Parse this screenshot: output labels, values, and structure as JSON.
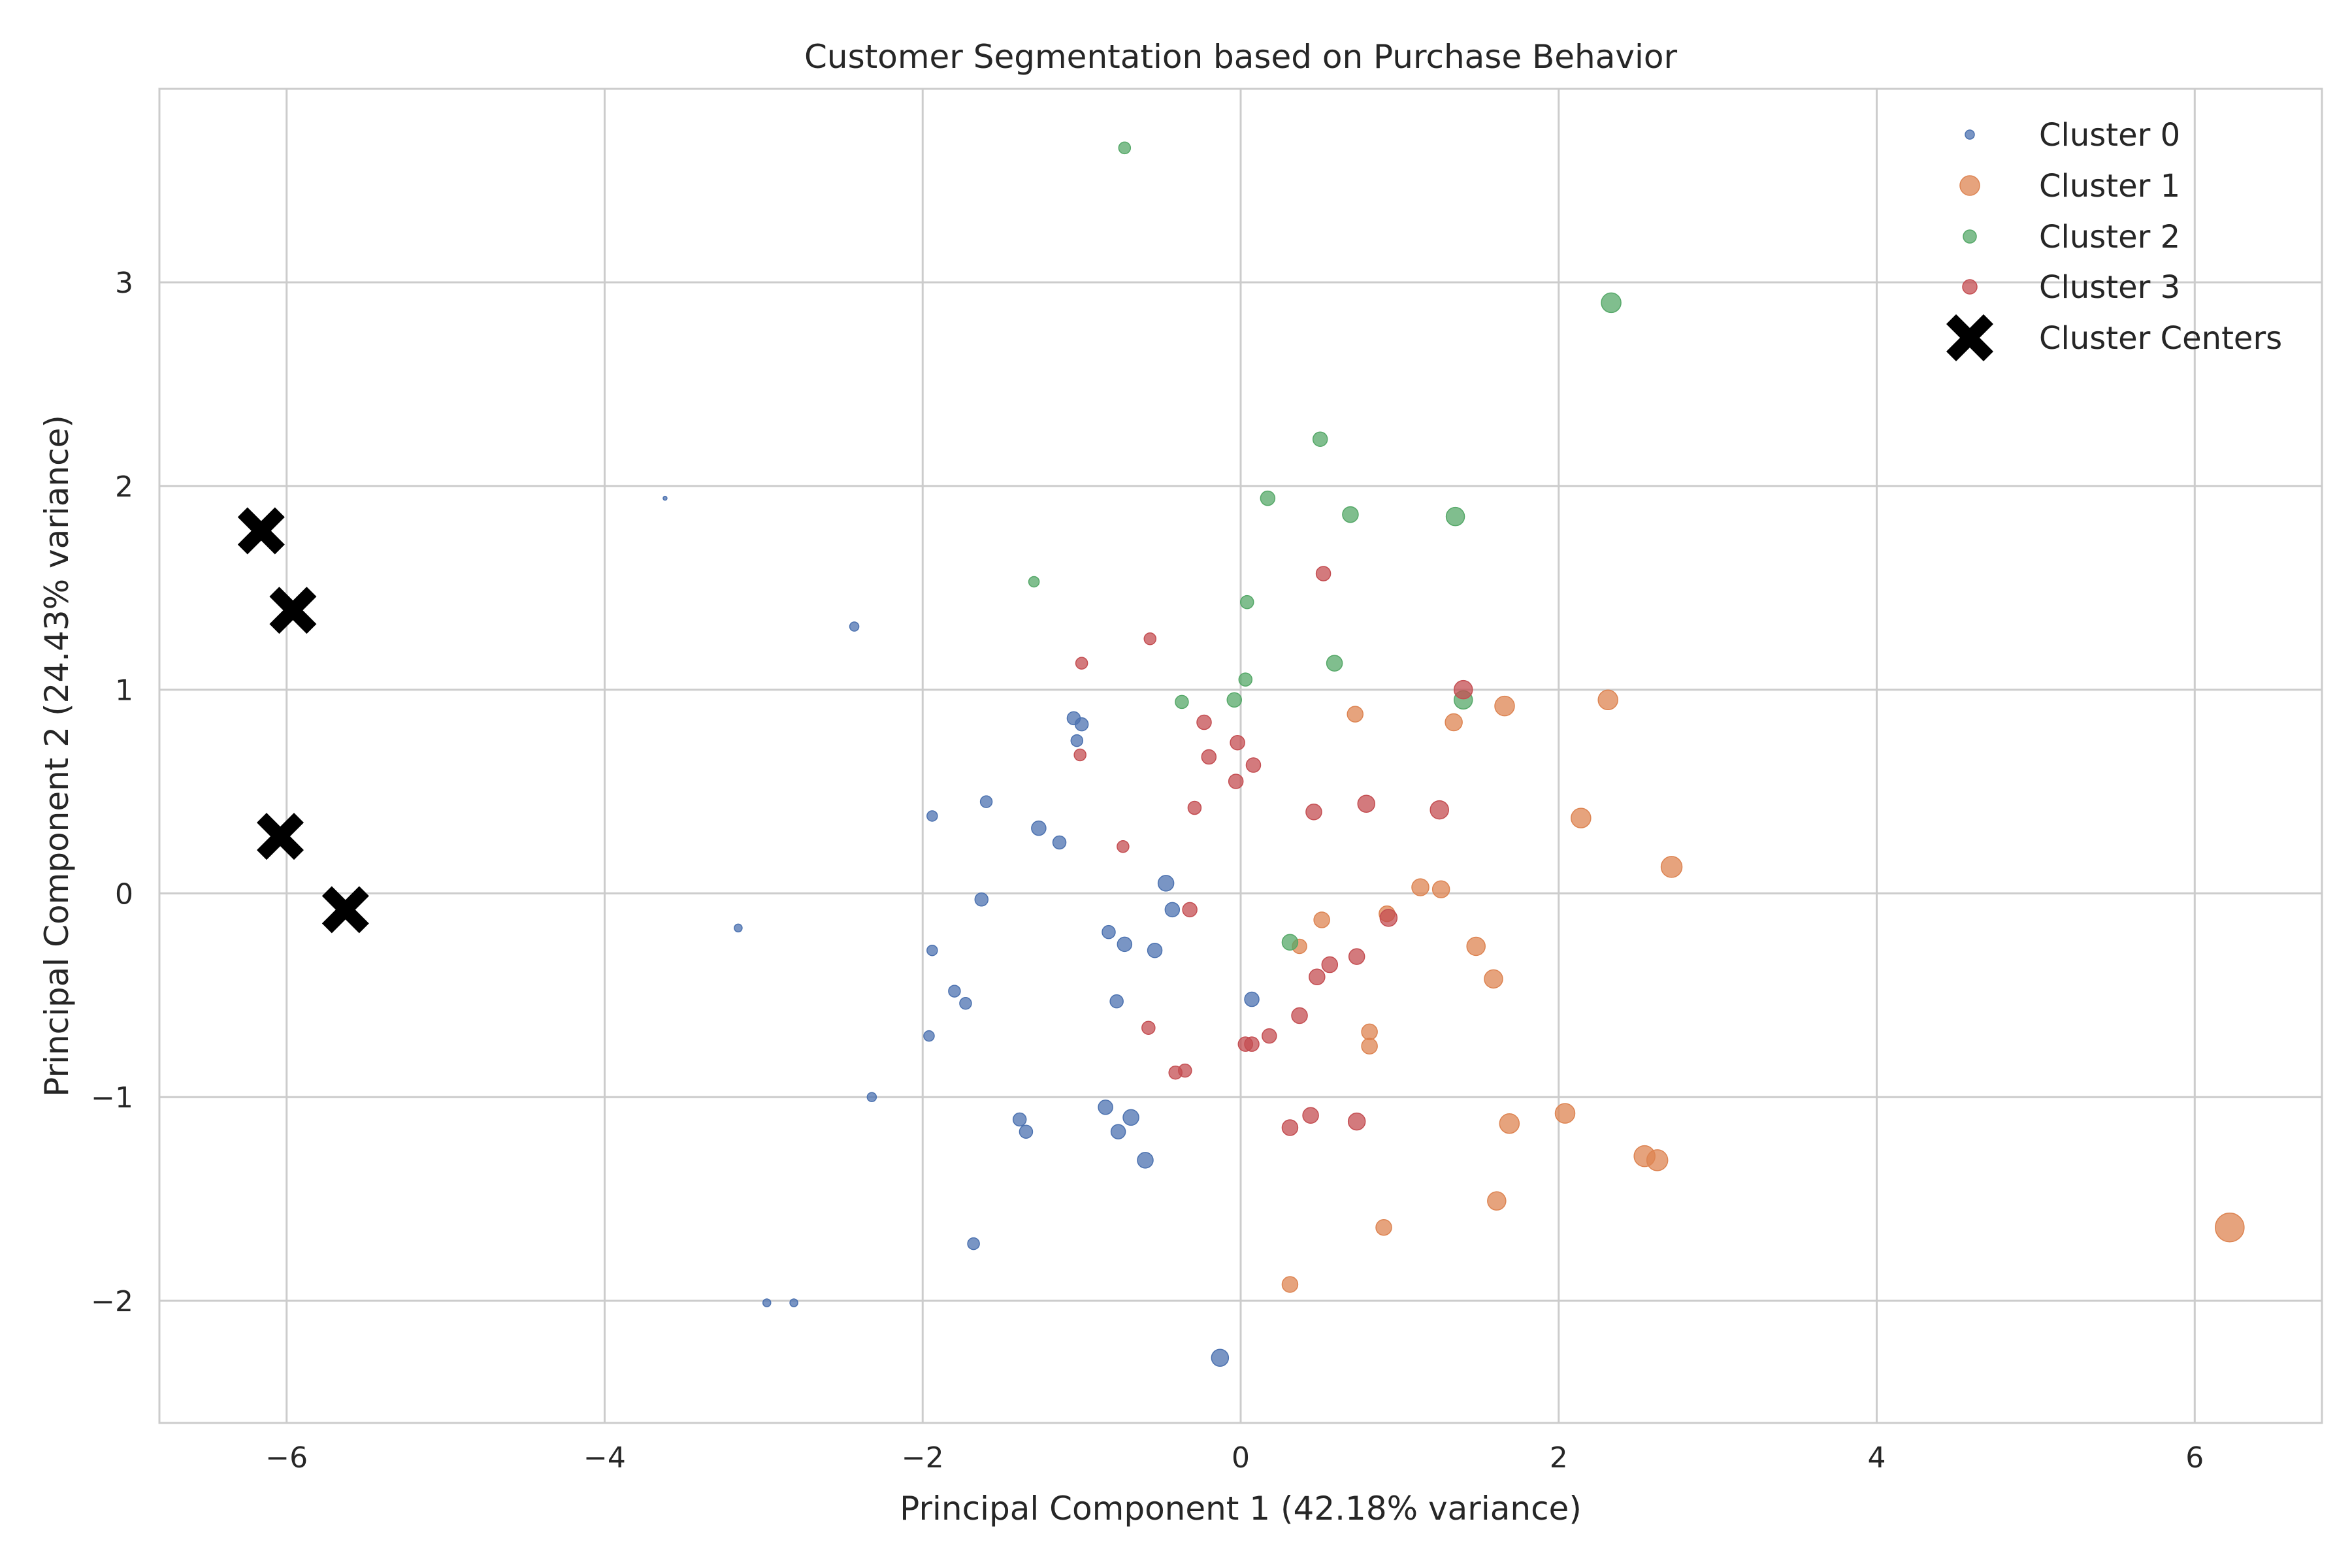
{
  "chart_data": {
    "type": "scatter",
    "title": "Customer Segmentation based on Purchase Behavior",
    "xlabel": "Principal Component 1 (42.18% variance)",
    "ylabel": "Principal Component 2 (24.43% variance)",
    "xlim": [
      -6.8,
      6.8
    ],
    "ylim": [
      -2.6,
      3.95
    ],
    "xticks": [
      -6,
      -4,
      -2,
      0,
      2,
      4,
      6
    ],
    "yticks": [
      -2,
      -1,
      0,
      1,
      2,
      3
    ],
    "xtick_labels": [
      "−6",
      "−4",
      "−2",
      "0",
      "2",
      "4",
      "6"
    ],
    "ytick_labels": [
      "−2",
      "−1",
      "0",
      "1",
      "2",
      "3"
    ],
    "grid": true,
    "legend_position": "top-right",
    "series": [
      {
        "name": "Cluster 0",
        "color": "#4c72b0",
        "points": [
          [
            -3.62,
            1.94
          ],
          [
            -2.43,
            1.31
          ],
          [
            -1.05,
            0.86
          ],
          [
            -1.0,
            0.83
          ],
          [
            -1.03,
            0.75
          ],
          [
            -1.94,
            0.38
          ],
          [
            -1.6,
            0.45
          ],
          [
            -1.27,
            0.32
          ],
          [
            -1.14,
            0.25
          ],
          [
            -0.47,
            0.05
          ],
          [
            -1.63,
            -0.03
          ],
          [
            -0.43,
            -0.08
          ],
          [
            -3.16,
            -0.17
          ],
          [
            -0.83,
            -0.19
          ],
          [
            -0.73,
            -0.25
          ],
          [
            -0.54,
            -0.28
          ],
          [
            -1.94,
            -0.28
          ],
          [
            -1.8,
            -0.48
          ],
          [
            -1.73,
            -0.54
          ],
          [
            -0.78,
            -0.53
          ],
          [
            0.07,
            -0.52
          ],
          [
            -1.96,
            -0.7
          ],
          [
            -2.32,
            -1.0
          ],
          [
            -0.85,
            -1.05
          ],
          [
            -0.69,
            -1.1
          ],
          [
            -1.39,
            -1.11
          ],
          [
            -1.35,
            -1.17
          ],
          [
            -0.77,
            -1.17
          ],
          [
            -0.6,
            -1.31
          ],
          [
            -1.68,
            -1.72
          ],
          [
            -2.98,
            -2.01
          ],
          [
            -2.81,
            -2.01
          ],
          [
            -0.13,
            -2.28
          ]
        ],
        "sizes": [
          3,
          7,
          10,
          10,
          9,
          8,
          9,
          11,
          10,
          12,
          10,
          11,
          6,
          10,
          11,
          11,
          8,
          9,
          9,
          10,
          11,
          8,
          7,
          11,
          12,
          10,
          10,
          11,
          12,
          9,
          6,
          6,
          13
        ]
      },
      {
        "name": "Cluster 1",
        "color": "#dd8452",
        "points": [
          [
            2.31,
            0.95
          ],
          [
            1.66,
            0.92
          ],
          [
            0.72,
            0.88
          ],
          [
            1.34,
            0.84
          ],
          [
            2.14,
            0.37
          ],
          [
            2.71,
            0.13
          ],
          [
            1.13,
            0.03
          ],
          [
            1.26,
            0.02
          ],
          [
            0.92,
            -0.1
          ],
          [
            0.51,
            -0.13
          ],
          [
            0.37,
            -0.26
          ],
          [
            1.48,
            -0.26
          ],
          [
            1.59,
            -0.42
          ],
          [
            0.81,
            -0.68
          ],
          [
            0.81,
            -0.75
          ],
          [
            1.69,
            -1.13
          ],
          [
            2.04,
            -1.08
          ],
          [
            2.54,
            -1.29
          ],
          [
            2.62,
            -1.31
          ],
          [
            1.61,
            -1.51
          ],
          [
            0.9,
            -1.64
          ],
          [
            0.31,
            -1.92
          ],
          [
            6.22,
            -1.64
          ]
        ],
        "sizes": [
          15,
          15,
          12,
          13,
          15,
          16,
          13,
          13,
          12,
          12,
          11,
          14,
          14,
          12,
          12,
          15,
          15,
          16,
          16,
          14,
          12,
          12,
          22
        ]
      },
      {
        "name": "Cluster 2",
        "color": "#55a868",
        "points": [
          [
            -0.73,
            3.66
          ],
          [
            2.33,
            2.9
          ],
          [
            0.5,
            2.23
          ],
          [
            0.17,
            1.94
          ],
          [
            0.69,
            1.86
          ],
          [
            1.35,
            1.85
          ],
          [
            -1.3,
            1.53
          ],
          [
            0.04,
            1.43
          ],
          [
            0.59,
            1.13
          ],
          [
            0.03,
            1.05
          ],
          [
            -0.37,
            0.94
          ],
          [
            -0.04,
            0.95
          ],
          [
            1.4,
            0.95
          ],
          [
            0.31,
            -0.24
          ]
        ],
        "sizes": [
          9,
          15,
          11,
          11,
          12,
          14,
          8,
          10,
          12,
          10,
          10,
          11,
          14,
          12
        ]
      },
      {
        "name": "Cluster 3",
        "color": "#c44e52",
        "points": [
          [
            0.52,
            1.57
          ],
          [
            -0.57,
            1.25
          ],
          [
            -1.0,
            1.13
          ],
          [
            1.4,
            1.0
          ],
          [
            -0.23,
            0.84
          ],
          [
            -0.02,
            0.74
          ],
          [
            -0.2,
            0.67
          ],
          [
            -1.01,
            0.68
          ],
          [
            0.08,
            0.63
          ],
          [
            -0.03,
            0.55
          ],
          [
            -0.29,
            0.42
          ],
          [
            0.46,
            0.4
          ],
          [
            0.79,
            0.44
          ],
          [
            1.25,
            0.41
          ],
          [
            -0.74,
            0.23
          ],
          [
            -0.32,
            -0.08
          ],
          [
            0.93,
            -0.12
          ],
          [
            0.56,
            -0.35
          ],
          [
            0.73,
            -0.31
          ],
          [
            0.48,
            -0.41
          ],
          [
            -0.58,
            -0.66
          ],
          [
            0.37,
            -0.6
          ],
          [
            0.18,
            -0.7
          ],
          [
            0.07,
            -0.74
          ],
          [
            0.03,
            -0.74
          ],
          [
            -0.35,
            -0.87
          ],
          [
            -0.41,
            -0.88
          ],
          [
            0.44,
            -1.09
          ],
          [
            0.31,
            -1.15
          ],
          [
            0.73,
            -1.12
          ]
        ],
        "sizes": [
          11,
          9,
          9,
          14,
          11,
          11,
          11,
          9,
          11,
          11,
          10,
          12,
          13,
          14,
          9,
          11,
          13,
          12,
          12,
          12,
          10,
          12,
          11,
          11,
          11,
          10,
          10,
          12,
          12,
          13
        ]
      }
    ],
    "centers": {
      "name": "Cluster Centers",
      "color": "#000000",
      "marker": "X",
      "points": [
        [
          -6.16,
          1.78
        ],
        [
          -5.96,
          1.39
        ],
        [
          -6.04,
          0.28
        ],
        [
          -5.63,
          -0.08
        ]
      ]
    }
  }
}
